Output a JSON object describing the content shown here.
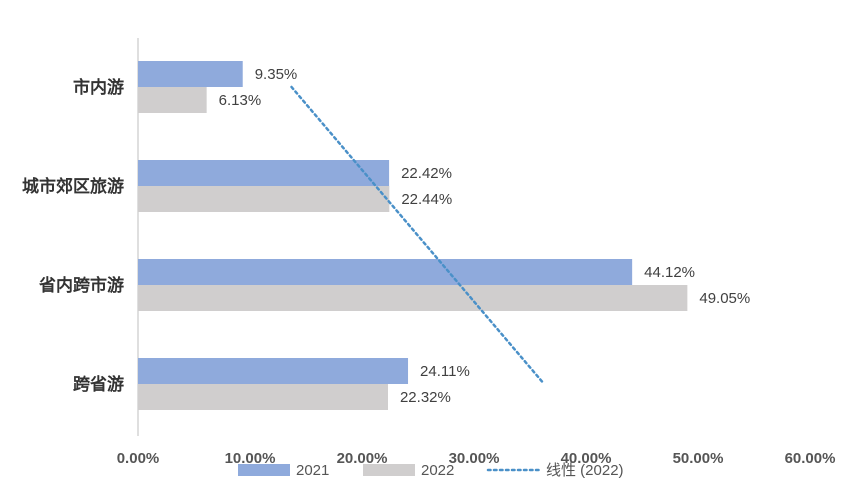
{
  "chart_data": {
    "type": "bar",
    "orientation": "horizontal",
    "categories": [
      "市内游",
      "城市郊区旅游",
      "省内跨市游",
      "跨省游"
    ],
    "series": [
      {
        "name": "2021",
        "values": [
          9.35,
          22.42,
          44.12,
          24.11
        ],
        "labels": [
          "9.35%",
          "22.42%",
          "44.12%",
          "24.11%"
        ],
        "color": "#8faadc"
      },
      {
        "name": "2022",
        "values": [
          6.13,
          22.44,
          49.05,
          22.32
        ],
        "labels": [
          "6.13%",
          "22.44%",
          "49.05%",
          "22.32%"
        ],
        "color": "#d0cece"
      }
    ],
    "trendline": {
      "name": "线性 (2022)",
      "series": "2022",
      "type": "linear",
      "style": "dotted",
      "color": "#4a90c8"
    },
    "xlim": [
      0,
      60
    ],
    "xticks": [
      0,
      10,
      20,
      30,
      40,
      50,
      60
    ],
    "xtick_labels": [
      "0.00%",
      "10.00%",
      "20.00%",
      "30.00%",
      "40.00%",
      "50.00%",
      "60.00%"
    ],
    "title": "",
    "xlabel": "",
    "ylabel": "",
    "grid": false,
    "legend_position": "bottom"
  }
}
